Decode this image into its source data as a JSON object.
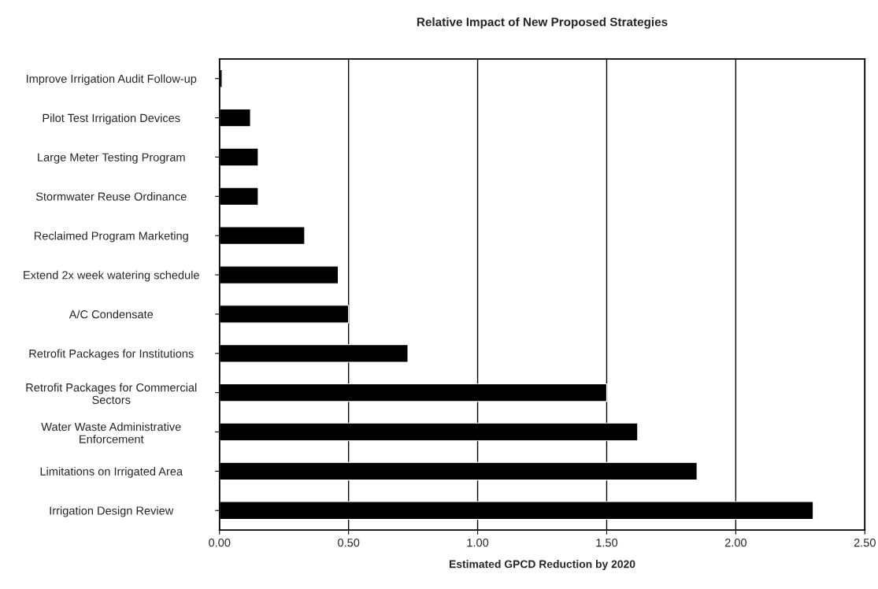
{
  "chart_data": {
    "type": "bar",
    "orientation": "horizontal",
    "title": "Relative Impact of New Proposed Strategies",
    "xlabel": "Estimated GPCD Reduction by 2020",
    "categories": [
      "Improve Irrigation Audit Follow-up",
      "Pilot Test Irrigation Devices",
      "Large Meter Testing Program",
      "Stormwater Reuse Ordinance",
      "Reclaimed Program Marketing",
      "Extend 2x week watering schedule",
      "A/C Condensate",
      "Retrofit Packages for Institutions",
      "Retrofit Packages for Commercial\nSectors",
      "Water Waste Administrative\nEnforcement",
      "Limitations on Irrigated Area",
      "Irrigation Design Review"
    ],
    "values": [
      0.01,
      0.12,
      0.15,
      0.15,
      0.33,
      0.46,
      0.5,
      0.73,
      1.5,
      1.62,
      1.85,
      2.3
    ],
    "color": "#000000",
    "xlim": [
      0,
      2.5
    ],
    "xticks": [
      {
        "value": 0,
        "label": "0.00"
      },
      {
        "value": 0.5,
        "label": "0.50"
      },
      {
        "value": 1,
        "label": "1.00"
      },
      {
        "value": 1.5,
        "label": "1.50"
      },
      {
        "value": 2,
        "label": "2.00"
      },
      {
        "value": 2.5,
        "label": "2.50"
      }
    ],
    "grid": "x"
  }
}
